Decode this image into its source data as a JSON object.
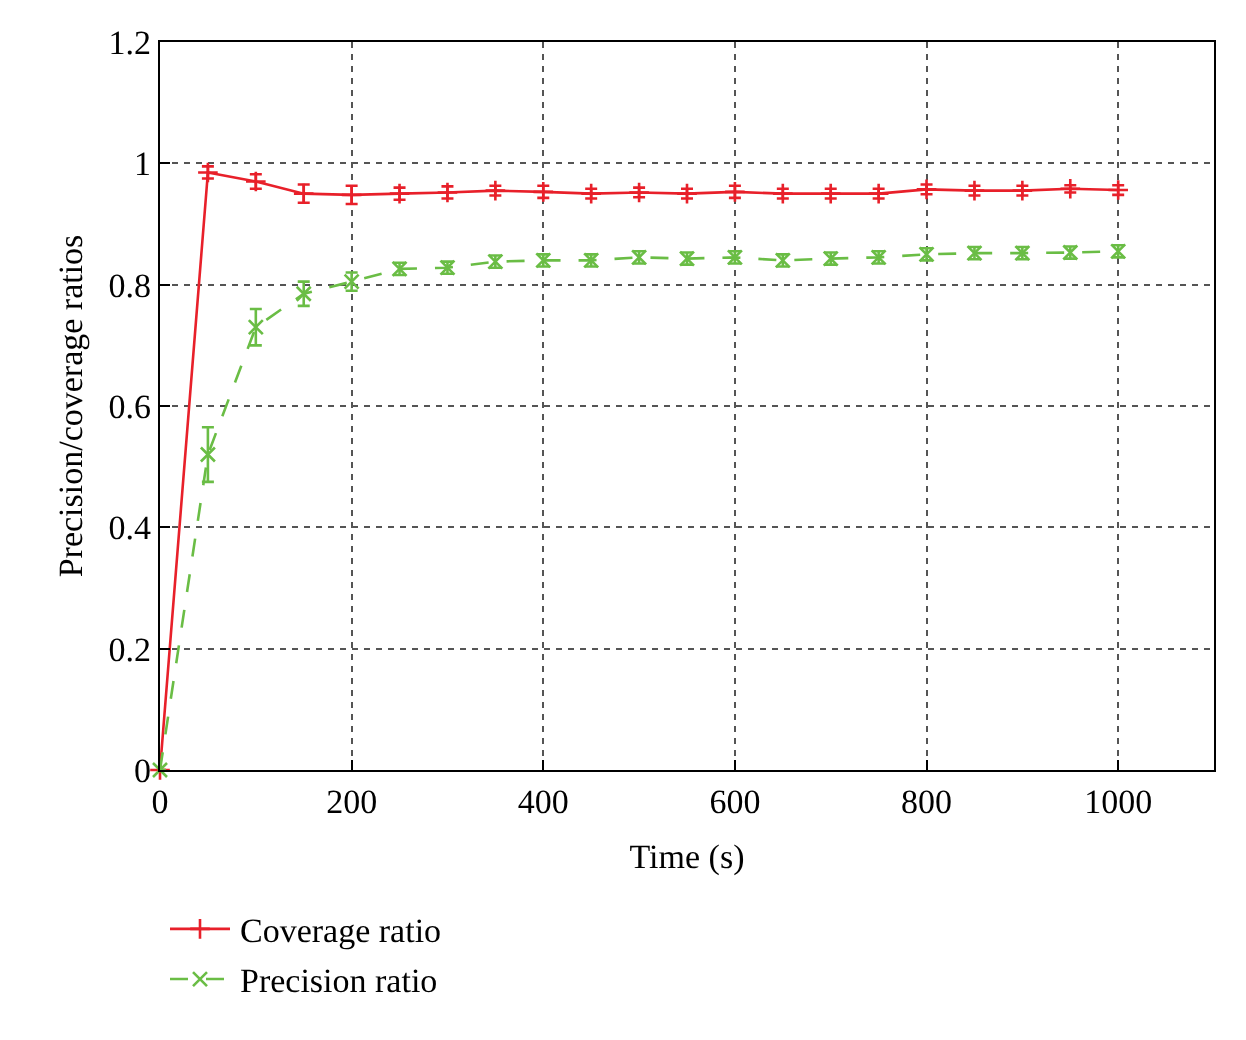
{
  "chart_data": {
    "type": "line",
    "xlabel": "Time (s)",
    "ylabel": "Precision/coverage ratios",
    "x": [
      0,
      50,
      100,
      150,
      200,
      250,
      300,
      350,
      400,
      450,
      500,
      550,
      600,
      650,
      700,
      750,
      800,
      850,
      900,
      950,
      1000
    ],
    "series": [
      {
        "name": "Coverage ratio",
        "color": "#e8202a",
        "marker": "cross",
        "line_style": "solid",
        "values": [
          0,
          0.985,
          0.97,
          0.95,
          0.948,
          0.95,
          0.952,
          0.955,
          0.953,
          0.95,
          0.952,
          0.95,
          0.953,
          0.95,
          0.95,
          0.95,
          0.957,
          0.955,
          0.955,
          0.958,
          0.956
        ],
        "errors": [
          null,
          0.01,
          0.012,
          0.015,
          0.015,
          0.01,
          0.01,
          0.008,
          0.01,
          0.008,
          0.008,
          0.008,
          0.01,
          0.008,
          0.008,
          0.008,
          0.008,
          0.008,
          0.008,
          0.006,
          0.008
        ]
      },
      {
        "name": "Precision ratio",
        "color": "#6abd45",
        "marker": "x",
        "line_style": "dashed",
        "values": [
          0,
          0.52,
          0.73,
          0.785,
          0.805,
          0.826,
          0.828,
          0.838,
          0.84,
          0.84,
          0.845,
          0.843,
          0.845,
          0.84,
          0.843,
          0.845,
          0.85,
          0.852,
          0.852,
          0.853,
          0.855
        ],
        "errors": [
          null,
          0.045,
          0.03,
          0.02,
          0.015,
          0.01,
          0.01,
          0.01,
          0.01,
          0.01,
          0.01,
          0.01,
          0.01,
          0.01,
          0.01,
          0.01,
          0.01,
          0.01,
          0.01,
          0.01,
          0.01
        ]
      }
    ],
    "xlim": [
      0,
      1100
    ],
    "xticks": [
      0,
      200,
      400,
      600,
      800,
      1000
    ],
    "ylim": [
      0,
      1.2
    ],
    "yticks": [
      0,
      0.2,
      0.4,
      0.6,
      0.8,
      1,
      1.2
    ],
    "grid": true,
    "legend": "bottom"
  }
}
